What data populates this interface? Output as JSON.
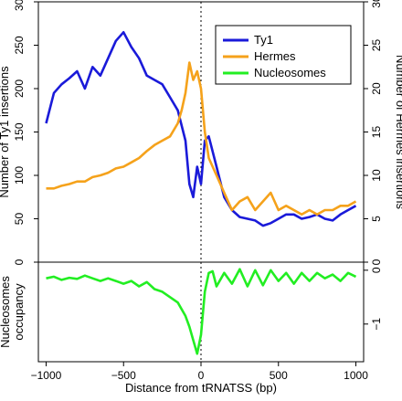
{
  "chart_data": [
    {
      "type": "line",
      "panel": "top",
      "xlabel": "Distance from tRNATSS (bp)",
      "xlim": [
        -1050,
        1050
      ],
      "xticks": [
        -1000,
        -500,
        0,
        500,
        1000
      ],
      "xtick_labels": [
        "−1000",
        "−500",
        "0",
        "500",
        "1000"
      ],
      "ylabel_left": "Number of Ty1 insertions",
      "ylim_left": [
        0,
        300
      ],
      "yticks_left": [
        0,
        50,
        100,
        150,
        200,
        250,
        300
      ],
      "ylabel_right": "Number of Hermes insertions",
      "ylim_right": [
        0,
        30
      ],
      "yticks_right": [
        0,
        5,
        10,
        15,
        20,
        25,
        30
      ],
      "vline_x": 0,
      "grid": false,
      "legend_position": "top-right",
      "series": [
        {
          "name": "Ty1",
          "color": "#1a1ad9",
          "axis": "left",
          "x": [
            -1000,
            -950,
            -900,
            -850,
            -800,
            -750,
            -700,
            -650,
            -600,
            -550,
            -500,
            -450,
            -400,
            -350,
            -300,
            -250,
            -200,
            -150,
            -100,
            -75,
            -50,
            -25,
            0,
            25,
            50,
            100,
            150,
            200,
            250,
            300,
            350,
            400,
            450,
            500,
            550,
            600,
            650,
            700,
            750,
            800,
            850,
            900,
            950,
            1000
          ],
          "y": [
            160,
            195,
            205,
            212,
            220,
            200,
            225,
            215,
            235,
            255,
            265,
            248,
            235,
            215,
            210,
            205,
            190,
            175,
            140,
            90,
            75,
            110,
            90,
            140,
            145,
            110,
            75,
            60,
            52,
            50,
            48,
            42,
            45,
            50,
            55,
            55,
            50,
            52,
            55,
            50,
            48,
            55,
            60,
            65
          ]
        },
        {
          "name": "Hermes",
          "color": "#f5a21b",
          "axis": "right",
          "x": [
            -1000,
            -950,
            -900,
            -850,
            -800,
            -750,
            -700,
            -650,
            -600,
            -550,
            -500,
            -450,
            -400,
            -350,
            -300,
            -250,
            -200,
            -150,
            -125,
            -100,
            -75,
            -50,
            -25,
            0,
            25,
            50,
            100,
            150,
            200,
            250,
            300,
            350,
            400,
            450,
            500,
            550,
            600,
            650,
            700,
            750,
            800,
            850,
            900,
            950,
            1000
          ],
          "y": [
            8.5,
            8.5,
            8.8,
            9.0,
            9.3,
            9.3,
            9.8,
            10,
            10.3,
            10.8,
            11,
            11.5,
            12,
            12.8,
            13.5,
            14,
            14.5,
            16,
            17.5,
            19.5,
            23,
            21,
            22,
            20,
            15,
            12,
            10,
            8,
            6,
            7,
            7.5,
            6,
            7,
            8,
            6,
            6.5,
            6,
            5.5,
            6,
            5.5,
            6,
            6,
            6.5,
            6.5,
            7
          ]
        }
      ]
    },
    {
      "type": "line",
      "panel": "bottom",
      "ylabel": "Nucleosomes occupancy",
      "ylim": [
        -1.7,
        0.15
      ],
      "yticks": [
        0,
        -1
      ],
      "ytick_labels": [
        "0",
        "−1"
      ],
      "vline_x": 0,
      "series": [
        {
          "name": "Nucleosomes",
          "color": "#22ee22",
          "x": [
            -1000,
            -950,
            -900,
            -850,
            -800,
            -750,
            -700,
            -650,
            -600,
            -550,
            -500,
            -450,
            -400,
            -350,
            -300,
            -250,
            -200,
            -150,
            -100,
            -75,
            -50,
            -25,
            0,
            25,
            50,
            75,
            100,
            150,
            200,
            250,
            300,
            350,
            400,
            450,
            500,
            550,
            600,
            650,
            700,
            750,
            800,
            850,
            900,
            950,
            1000
          ],
          "y": [
            -0.15,
            -0.12,
            -0.18,
            -0.14,
            -0.16,
            -0.1,
            -0.15,
            -0.2,
            -0.15,
            -0.2,
            -0.25,
            -0.2,
            -0.3,
            -0.22,
            -0.35,
            -0.4,
            -0.5,
            -0.6,
            -0.85,
            -1.05,
            -1.3,
            -1.55,
            -1.2,
            -0.4,
            -0.05,
            -0.02,
            -0.3,
            -0.05,
            -0.25,
            0.02,
            -0.3,
            0.0,
            -0.28,
            0.0,
            -0.2,
            -0.05,
            -0.25,
            -0.05,
            -0.2,
            -0.05,
            -0.15,
            -0.08,
            -0.2,
            -0.05,
            -0.12
          ]
        }
      ]
    }
  ]
}
